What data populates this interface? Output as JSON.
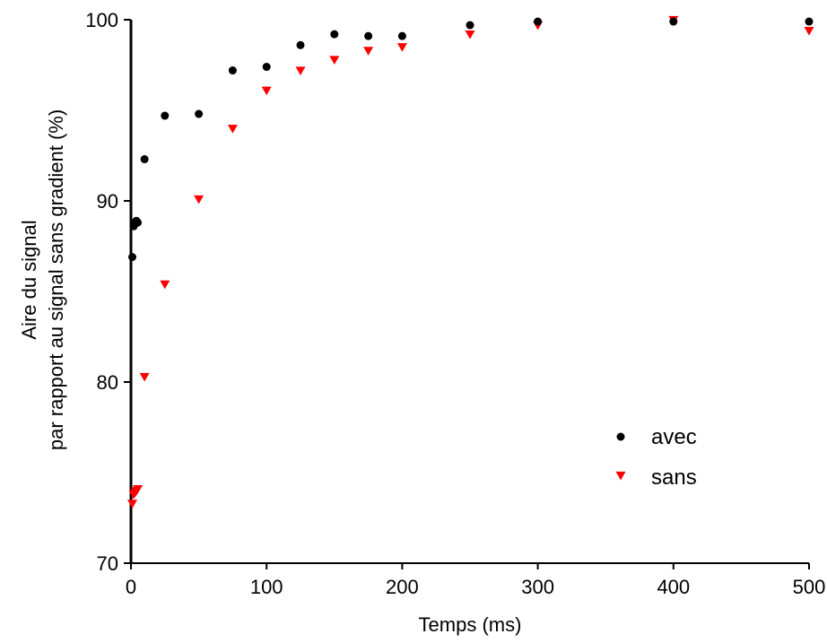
{
  "chart_data": {
    "type": "scatter",
    "title": "",
    "xlabel": "Temps (ms)",
    "ylabel": [
      "Aire du signal",
      "par rapport au signal sans gradient (%)"
    ],
    "xlim": [
      0,
      500
    ],
    "ylim": [
      70,
      100
    ],
    "xticks": [
      0,
      100,
      200,
      300,
      400,
      500
    ],
    "yticks": [
      70,
      80,
      90,
      100
    ],
    "grid": false,
    "legend_position": "bottom-right",
    "series": [
      {
        "name": "avec",
        "marker": "circle",
        "color": "#000000",
        "x": [
          1,
          2,
          3,
          4,
          5,
          10,
          25,
          50,
          75,
          100,
          125,
          150,
          175,
          200,
          250,
          300,
          400,
          500
        ],
        "y": [
          86.9,
          88.6,
          88.8,
          88.9,
          88.8,
          92.3,
          94.7,
          94.8,
          97.2,
          97.4,
          98.6,
          99.2,
          99.1,
          99.1,
          99.7,
          99.9,
          99.9,
          99.9
        ]
      },
      {
        "name": "sans",
        "marker": "triangle-down",
        "color": "#ff0000",
        "x": [
          1,
          2,
          3,
          4,
          5,
          10,
          25,
          50,
          75,
          100,
          125,
          150,
          175,
          200,
          250,
          300,
          400,
          500
        ],
        "y": [
          73.3,
          73.8,
          73.9,
          74.0,
          74.1,
          80.3,
          85.4,
          90.1,
          94.0,
          96.1,
          97.2,
          97.8,
          98.3,
          98.5,
          99.2,
          99.7,
          100.0,
          99.4
        ]
      }
    ]
  }
}
